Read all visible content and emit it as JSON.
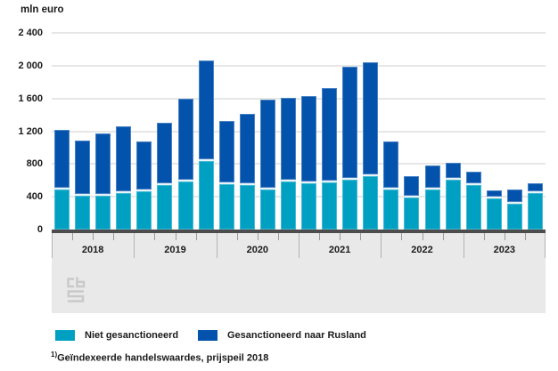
{
  "unit_label": "mln euro",
  "chart_data": {
    "type": "bar",
    "stacked": true,
    "title": "",
    "ylabel": "mln euro",
    "ylim": [
      0,
      2400
    ],
    "grid": true,
    "legend_position": "bottom",
    "x_structure": "quarterly",
    "categories": [
      "2018",
      "2019",
      "2020",
      "2021",
      "2022",
      "2023"
    ],
    "yticks": [
      {
        "v": 0,
        "label": "0"
      },
      {
        "v": 400,
        "label": "400"
      },
      {
        "v": 800,
        "label": "800"
      },
      {
        "v": 1200,
        "label": "1 200"
      },
      {
        "v": 1600,
        "label": "1 600"
      },
      {
        "v": 2000,
        "label": "2 000"
      },
      {
        "v": 2400,
        "label": "2 400"
      }
    ],
    "series": [
      {
        "name": "Niet gesanctioneerd",
        "color": "#00a0c3",
        "values": [
          505,
          425,
          425,
          455,
          480,
          555,
          600,
          845,
          565,
          555,
          505,
          595,
          575,
          590,
          615,
          665,
          495,
          405,
          500,
          615,
          555,
          395,
          330,
          455
        ]
      },
      {
        "name": "Gesanctioneerd naar Rusland",
        "color": "#0353ac",
        "values": [
          715,
          665,
          745,
          805,
          600,
          755,
          1000,
          1225,
          760,
          860,
          1085,
          1015,
          1060,
          1135,
          1375,
          1380,
          580,
          245,
          280,
          205,
          155,
          85,
          160,
          110
        ]
      }
    ]
  },
  "legend": {
    "items": [
      {
        "label": "Niet gesanctioneerd",
        "color": "#00a0c3"
      },
      {
        "label": "Gesanctioneerd naar Rusland",
        "color": "#0353ac"
      }
    ]
  },
  "footnote": {
    "marker": "1)",
    "text": "Geïndexeerde handelswaardes, prijspeil 2018"
  },
  "colors": {
    "axis": "#4d4d4d",
    "grid": "#e7e7e7",
    "band": "#e9e9e9",
    "text": "#1a1a1a"
  }
}
